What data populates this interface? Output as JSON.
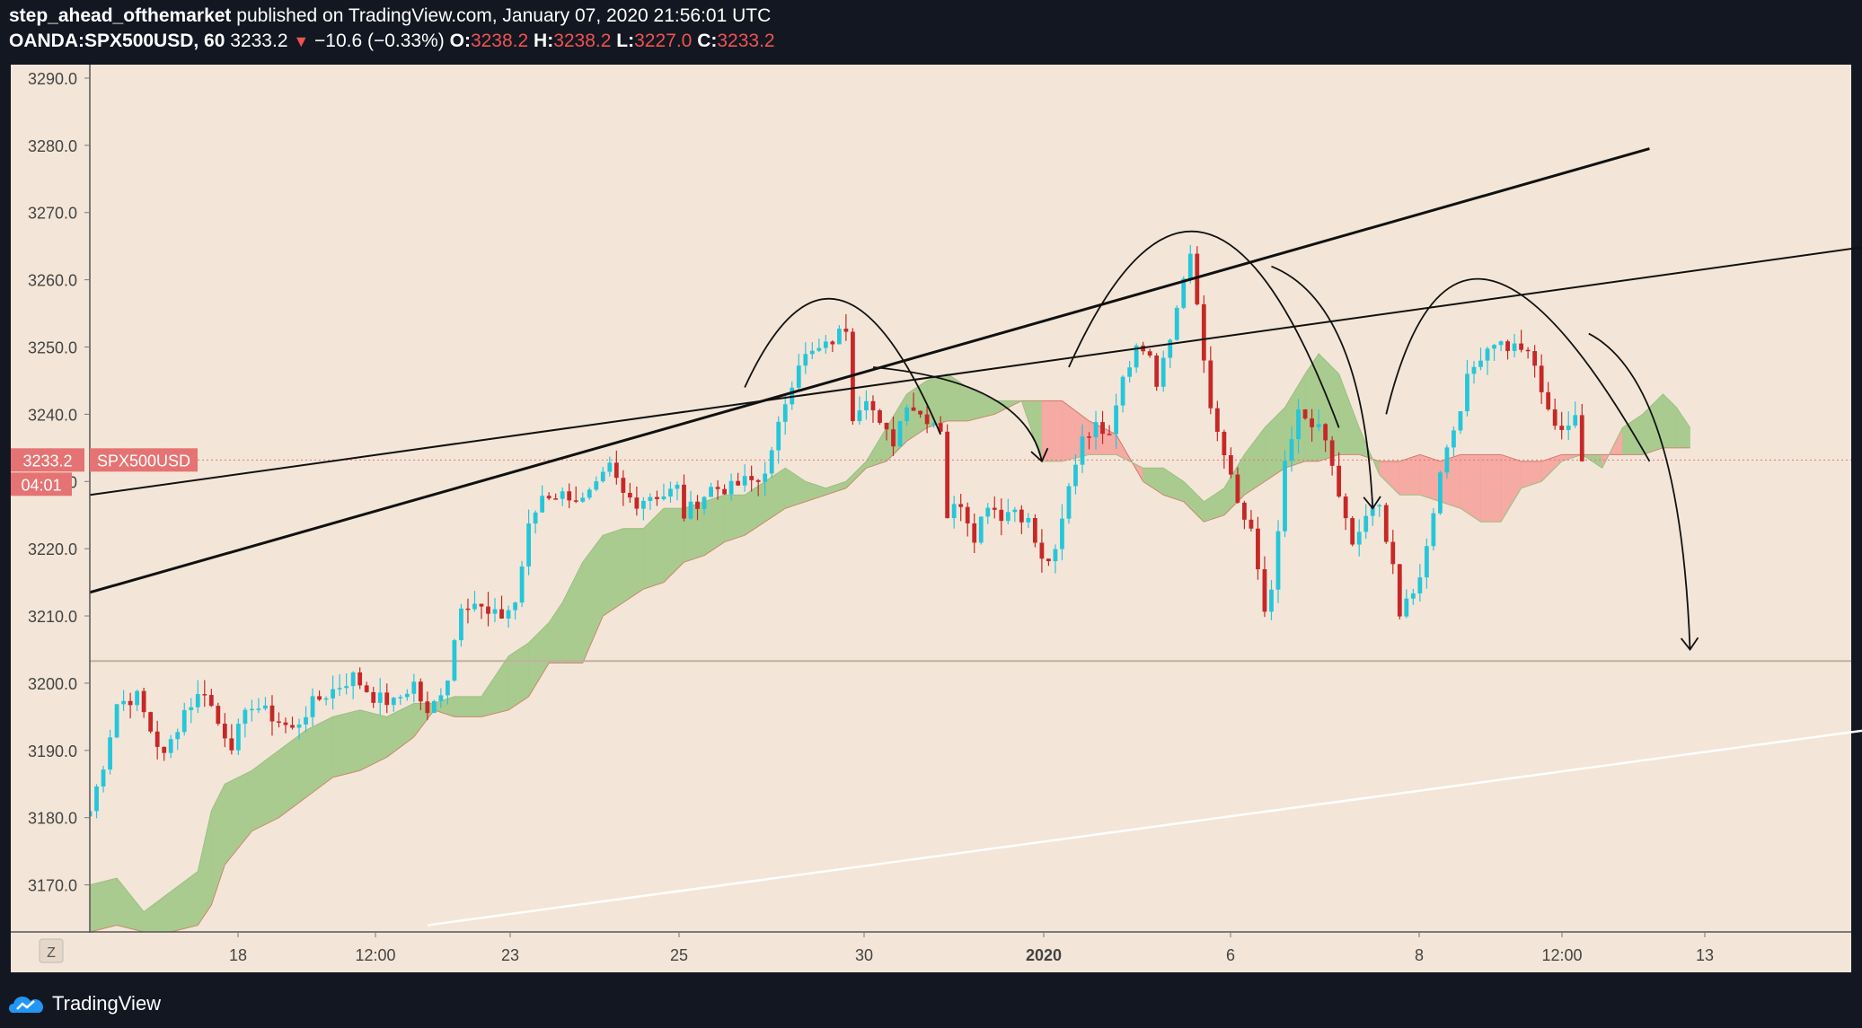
{
  "header": {
    "author": "step_ahead_ofthemarket",
    "published_text": "published on TradingView.com, January 07, 2020 21:56:01 UTC",
    "symbol": "OANDA:SPX500USD, 60",
    "last": "3233.2",
    "direction_arrow": "▼",
    "change": "−10.6 (−0.33%)",
    "o_label": "O:",
    "o_value": "3238.2",
    "h_label": "H:",
    "h_value": "3238.2",
    "l_label": "L:",
    "l_value": "3227.0",
    "c_label": "C:",
    "c_value": "3233.2"
  },
  "price_tag": {
    "price": "3233.2",
    "symbol": "SPX500USD",
    "countdown": "04:01"
  },
  "footer": {
    "brand": "TradingView",
    "logo_icon": "tradingview-logo-icon"
  },
  "colors": {
    "background": "#f3e6d8",
    "up_candle": "#26c6da",
    "down_candle": "#c62828",
    "cloud_bull": "#a5c98c",
    "cloud_bear": "#f4a6a0",
    "label_red": "#e57373"
  },
  "chart_data": {
    "type": "candlestick",
    "symbol": "OANDA:SPX500USD",
    "interval": "60",
    "ylim": [
      3163,
      3292
    ],
    "y_ticks": [
      "3290.0",
      "3280.0",
      "3270.0",
      "3260.0",
      "3250.0",
      "3240.0",
      "3230.0",
      "3220.0",
      "3210.0",
      "3200.0",
      "3190.0",
      "3180.0",
      "3170.0"
    ],
    "x_ticks": [
      "18",
      "12:00",
      "23",
      "25",
      "30",
      "2020",
      "6",
      "8",
      "12:00",
      "13"
    ],
    "axis_corner": "Z",
    "price_path": [
      [
        0,
        3181
      ],
      [
        2,
        3188
      ],
      [
        4,
        3197
      ],
      [
        7,
        3198
      ],
      [
        9,
        3193
      ],
      [
        11,
        3189
      ],
      [
        14,
        3196
      ],
      [
        17,
        3199
      ],
      [
        19,
        3194
      ],
      [
        21,
        3191
      ],
      [
        24,
        3197
      ],
      [
        27,
        3195
      ],
      [
        30,
        3193
      ],
      [
        33,
        3197
      ],
      [
        36,
        3199
      ],
      [
        39,
        3201
      ],
      [
        42,
        3198
      ],
      [
        45,
        3197
      ],
      [
        48,
        3200
      ],
      [
        50,
        3195
      ],
      [
        53,
        3201
      ],
      [
        55,
        3212
      ],
      [
        57,
        3212
      ],
      [
        59,
        3210
      ],
      [
        61,
        3210
      ],
      [
        63,
        3212
      ],
      [
        65,
        3223
      ],
      [
        67,
        3228
      ],
      [
        69,
        3228
      ],
      [
        71,
        3228
      ],
      [
        73,
        3227
      ],
      [
        75,
        3229
      ],
      [
        77,
        3232
      ],
      [
        79,
        3228
      ],
      [
        81,
        3227
      ],
      [
        83,
        3228
      ],
      [
        85,
        3228
      ],
      [
        87,
        3229
      ],
      [
        88,
        3225
      ],
      [
        90,
        3227
      ],
      [
        92,
        3229
      ],
      [
        95,
        3229
      ],
      [
        97,
        3230
      ],
      [
        99,
        3230
      ],
      [
        101,
        3234
      ],
      [
        103,
        3242
      ],
      [
        105,
        3248
      ],
      [
        107,
        3249
      ],
      [
        109,
        3250
      ],
      [
        111,
        3252
      ],
      [
        112,
        3253
      ],
      [
        113,
        3240
      ],
      [
        115,
        3243
      ],
      [
        117,
        3238
      ],
      [
        119,
        3236
      ],
      [
        121,
        3242
      ],
      [
        123,
        3240
      ],
      [
        125,
        3239
      ],
      [
        126,
        3238
      ],
      [
        127,
        3225
      ],
      [
        129,
        3227
      ],
      [
        131,
        3222
      ],
      [
        133,
        3227
      ],
      [
        135,
        3225
      ],
      [
        137,
        3226
      ],
      [
        139,
        3224
      ],
      [
        141,
        3218
      ],
      [
        143,
        3219
      ],
      [
        145,
        3229
      ],
      [
        147,
        3237
      ],
      [
        149,
        3238
      ],
      [
        151,
        3238
      ],
      [
        153,
        3246
      ],
      [
        155,
        3250
      ],
      [
        157,
        3249
      ],
      [
        158,
        3244
      ],
      [
        160,
        3251
      ],
      [
        162,
        3261
      ],
      [
        163,
        3263
      ],
      [
        164,
        3256
      ],
      [
        166,
        3240
      ],
      [
        168,
        3234
      ],
      [
        170,
        3226
      ],
      [
        172,
        3223
      ],
      [
        174,
        3210
      ],
      [
        175,
        3213
      ],
      [
        177,
        3232
      ],
      [
        179,
        3240
      ],
      [
        181,
        3239
      ],
      [
        183,
        3236
      ],
      [
        185,
        3228
      ],
      [
        187,
        3220
      ],
      [
        189,
        3225
      ],
      [
        191,
        3226
      ],
      [
        193,
        3218
      ],
      [
        194,
        3210
      ],
      [
        196,
        3213
      ],
      [
        198,
        3220
      ],
      [
        200,
        3232
      ],
      [
        202,
        3238
      ],
      [
        204,
        3245
      ],
      [
        206,
        3249
      ],
      [
        208,
        3251
      ],
      [
        210,
        3250
      ],
      [
        212,
        3250
      ],
      [
        214,
        3247
      ],
      [
        216,
        3240
      ],
      [
        218,
        3238
      ],
      [
        220,
        3239
      ],
      [
        221,
        3233
      ]
    ],
    "cloud": [
      [
        0,
        3170,
        3163
      ],
      [
        4,
        3171,
        3164
      ],
      [
        8,
        3166,
        3163
      ],
      [
        12,
        3169,
        3163
      ],
      [
        16,
        3172,
        3164
      ],
      [
        18,
        3181,
        3167
      ],
      [
        20,
        3185,
        3173
      ],
      [
        24,
        3187,
        3178
      ],
      [
        28,
        3190,
        3180
      ],
      [
        32,
        3193,
        3183
      ],
      [
        36,
        3195,
        3186
      ],
      [
        40,
        3196,
        3187
      ],
      [
        44,
        3195,
        3189
      ],
      [
        48,
        3197,
        3192
      ],
      [
        51,
        3197,
        3196
      ],
      [
        54,
        3198,
        3195
      ],
      [
        58,
        3198,
        3195
      ],
      [
        62,
        3204,
        3196
      ],
      [
        65,
        3206,
        3198
      ],
      [
        68,
        3209,
        3203
      ],
      [
        70,
        3212,
        3203
      ],
      [
        73,
        3218,
        3203
      ],
      [
        76,
        3222,
        3210
      ],
      [
        79,
        3223,
        3212
      ],
      [
        82,
        3223,
        3214
      ],
      [
        85,
        3226,
        3215
      ],
      [
        88,
        3226,
        3218
      ],
      [
        91,
        3227,
        3219
      ],
      [
        94,
        3228,
        3221
      ],
      [
        97,
        3228,
        3222
      ],
      [
        100,
        3230,
        3224
      ],
      [
        103,
        3232,
        3226
      ],
      [
        106,
        3230,
        3227
      ],
      [
        109,
        3229,
        3228
      ],
      [
        112,
        3230,
        3229
      ],
      [
        115,
        3233,
        3232
      ],
      [
        118,
        3238,
        3233
      ],
      [
        121,
        3243,
        3236
      ],
      [
        124,
        3245,
        3238
      ],
      [
        127,
        3246,
        3239
      ],
      [
        130,
        3244,
        3239
      ],
      [
        134,
        3242,
        3240
      ],
      [
        138,
        3242,
        3242
      ],
      [
        141,
        3233,
        3242
      ],
      [
        144,
        3233,
        3242
      ],
      [
        148,
        3234,
        3239
      ],
      [
        152,
        3234,
        3237
      ],
      [
        156,
        3232,
        3230
      ],
      [
        159,
        3232,
        3228
      ],
      [
        162,
        3230,
        3227
      ],
      [
        165,
        3227,
        3224
      ],
      [
        168,
        3229,
        3225
      ],
      [
        171,
        3234,
        3228
      ],
      [
        174,
        3238,
        3230
      ],
      [
        177,
        3241,
        3232
      ],
      [
        180,
        3246,
        3233
      ],
      [
        182,
        3249,
        3233
      ],
      [
        185,
        3246,
        3234
      ],
      [
        188,
        3238,
        3234
      ],
      [
        191,
        3231,
        3233
      ],
      [
        194,
        3228,
        3233
      ],
      [
        197,
        3228,
        3234
      ],
      [
        200,
        3227,
        3233
      ],
      [
        203,
        3226,
        3234
      ],
      [
        206,
        3224,
        3234
      ],
      [
        209,
        3224,
        3234
      ],
      [
        212,
        3229,
        3233
      ],
      [
        215,
        3230,
        3233
      ],
      [
        218,
        3233,
        3234
      ],
      [
        221,
        3234,
        3234
      ],
      [
        224,
        3232,
        3234
      ],
      [
        227,
        3238,
        3234
      ],
      [
        230,
        3240,
        3234
      ],
      [
        233,
        3243,
        3235
      ],
      [
        235,
        3241,
        3235
      ],
      [
        237,
        3238,
        3235
      ]
    ],
    "hline": 3203.3,
    "drawings": {
      "thick_trendline": [
        [
          0,
          3213.5
        ],
        [
          231,
          3279.5
        ]
      ],
      "thin_trendline": [
        [
          0,
          3228
        ],
        [
          285,
          3268
        ]
      ],
      "support_line_white": [
        [
          50,
          3164
        ],
        [
          285,
          3196
        ]
      ],
      "arcs": [
        [
          97,
          3244,
          111,
          3257,
          126,
          3237
        ],
        [
          145,
          3247,
          165,
          3267,
          185,
          3238
        ],
        [
          192,
          3240,
          207,
          3260,
          231,
          3233
        ]
      ],
      "arrow_tips": [
        [
          141,
          3233
        ],
        [
          190,
          3226
        ],
        [
          237,
          3205
        ]
      ]
    }
  }
}
